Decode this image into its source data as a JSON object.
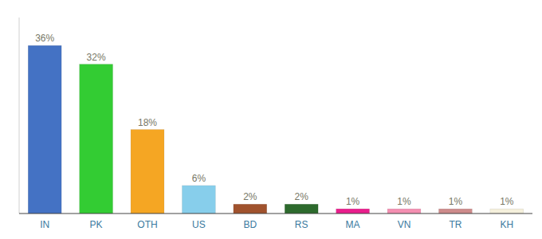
{
  "chart_data": {
    "type": "bar",
    "categories": [
      "IN",
      "PK",
      "OTH",
      "US",
      "BD",
      "RS",
      "MA",
      "VN",
      "TR",
      "KH"
    ],
    "values": [
      36,
      32,
      18,
      6,
      2,
      2,
      1,
      1,
      1,
      1
    ],
    "value_labels": [
      "36%",
      "32%",
      "18%",
      "6%",
      "2%",
      "2%",
      "1%",
      "1%",
      "1%",
      "1%"
    ],
    "data_labels": true,
    "colors": [
      "#4472c4",
      "#33cc33",
      "#f5a623",
      "#87ceeb",
      "#a0522d",
      "#2d6a2d",
      "#e91e8c",
      "#f48fb1",
      "#cd8b8b",
      "#f5f0dc"
    ],
    "ylim": [
      0,
      42
    ],
    "tick_labels": "x"
  }
}
